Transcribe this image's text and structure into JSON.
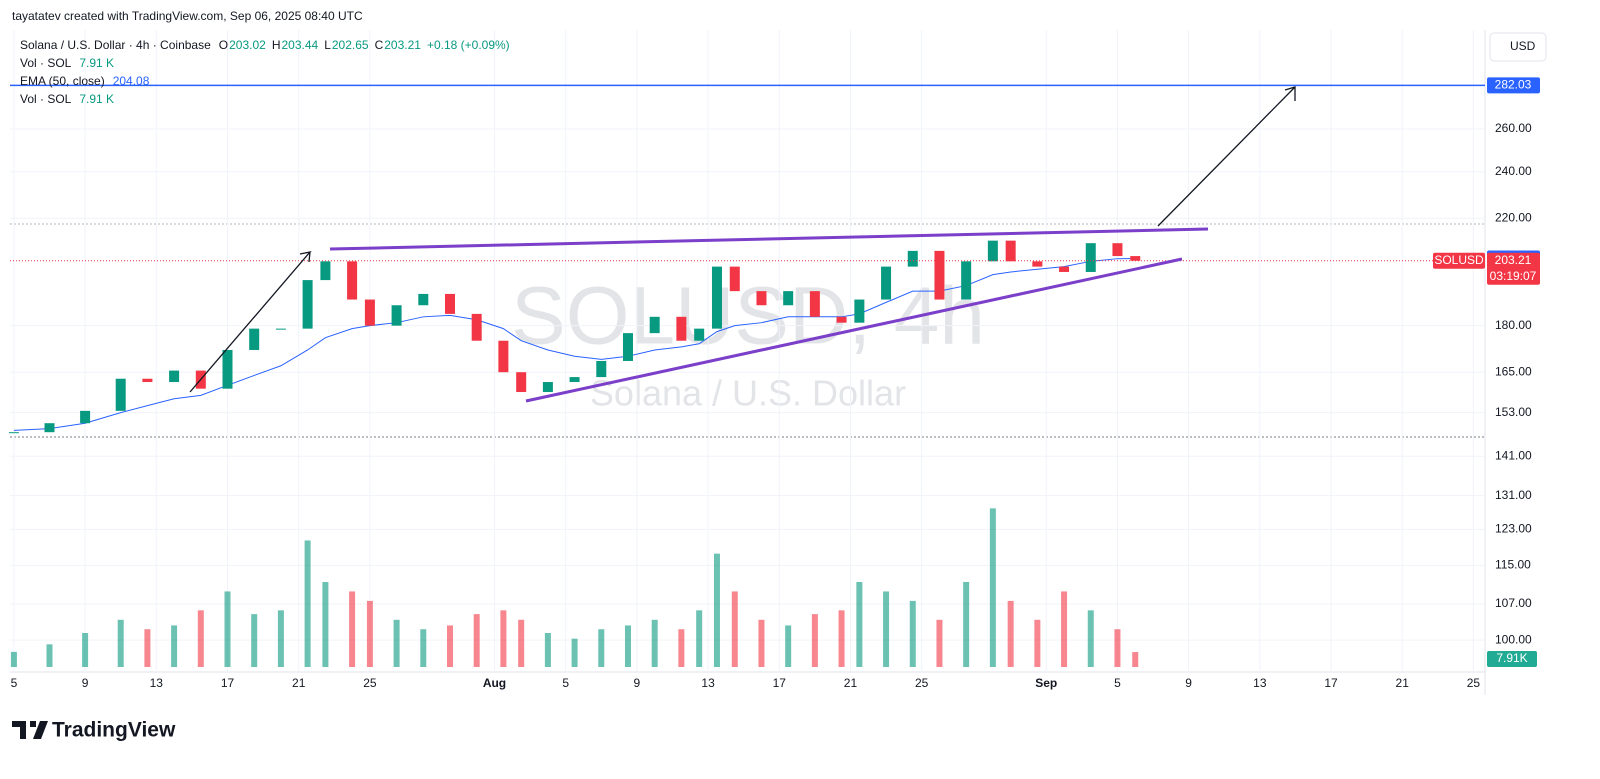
{
  "header": "tayatatev created with TradingView.com, Sep 06, 2025 08:40 UTC",
  "chart_data": {
    "type": "candlestick",
    "symbol": "Solana / U.S. Dollar · 4h · Coinbase",
    "ohlc": [
      {
        "label": "O",
        "value": 203.02
      },
      {
        "label": "H",
        "value": 203.44
      },
      {
        "label": "L",
        "value": 202.65
      },
      {
        "label": "C",
        "value": 203.21
      }
    ],
    "change": "+0.18 (+0.09%)",
    "indicators": [
      {
        "name": "Vol · SOL",
        "value": "7.91 K"
      },
      {
        "name": "EMA (50, close)",
        "value": 204.08
      },
      {
        "name": "Vol · SOL",
        "value": "7.91 K"
      }
    ],
    "currency": "USD",
    "x": [
      0,
      2,
      4,
      6,
      7.5,
      9,
      10.5,
      12,
      13.5,
      15,
      16.5,
      17.5,
      19,
      20,
      21.5,
      23,
      24.5,
      26,
      27.5,
      28.5,
      30,
      31.5,
      33,
      34.5,
      36,
      37.5,
      38.5,
      39.5,
      40.5,
      42,
      43.5,
      45,
      46.5,
      47.5,
      49,
      50.5,
      52,
      53.5,
      55,
      56,
      57.5,
      59,
      60.5,
      62,
      63
    ],
    "xlim": [
      -0.22,
      82.65
    ],
    "xticks": [
      {
        "value": 0,
        "label": "5"
      },
      {
        "value": 4,
        "label": "9"
      },
      {
        "value": 8,
        "label": "13"
      },
      {
        "value": 12,
        "label": "17"
      },
      {
        "value": 16,
        "label": "21"
      },
      {
        "value": 20,
        "label": "25"
      },
      {
        "value": 27,
        "label": "Aug"
      },
      {
        "value": 31,
        "label": "5"
      },
      {
        "value": 35,
        "label": "9"
      },
      {
        "value": 39,
        "label": "13"
      },
      {
        "value": 43,
        "label": "17"
      },
      {
        "value": 47,
        "label": "21"
      },
      {
        "value": 51,
        "label": "25"
      },
      {
        "value": 58,
        "label": "Sep"
      },
      {
        "value": 62,
        "label": "5"
      },
      {
        "value": 66,
        "label": "9"
      },
      {
        "value": 70,
        "label": "13"
      },
      {
        "value": 74,
        "label": "17"
      },
      {
        "value": 78,
        "label": "21"
      },
      {
        "value": 82,
        "label": "25"
      }
    ],
    "ylim": [
      91.1,
      312.8
    ],
    "log_scale": true,
    "yticks": [
      {
        "value": 100,
        "label": "100.00"
      },
      {
        "value": 107,
        "label": "107.00"
      },
      {
        "value": 115,
        "label": "115.00"
      },
      {
        "value": 123,
        "label": "123.00"
      },
      {
        "value": 131,
        "label": "131.00"
      },
      {
        "value": 141,
        "label": "141.00"
      },
      {
        "value": 153,
        "label": "153.00"
      },
      {
        "value": 165,
        "label": "165.00"
      },
      {
        "value": 180,
        "label": "180.00"
      },
      {
        "value": 220,
        "label": "220.00"
      },
      {
        "value": 240,
        "label": "240.00"
      },
      {
        "value": 260,
        "label": "260.00"
      }
    ],
    "series": [
      {
        "name": "SOLUSD",
        "up_color": "#089981",
        "down_color": "#f23645",
        "values": [
          147.5,
          150,
          153.5,
          163,
          162,
          165.5,
          160,
          172,
          179,
          179,
          196,
          203,
          189,
          180,
          187,
          191,
          184,
          175,
          165,
          159,
          162,
          163.5,
          168.5,
          177.5,
          183,
          175,
          179,
          201,
          192,
          187,
          192,
          183,
          181,
          189,
          201,
          207,
          189,
          203,
          211,
          203,
          201,
          199,
          210,
          205,
          203.21
        ]
      },
      {
        "name": "EMA (50, close)",
        "color": "#2962ff",
        "values": [
          148,
          148.5,
          150,
          153,
          155,
          157,
          158,
          161,
          164,
          167,
          172,
          176,
          179,
          180,
          181,
          183,
          183.5,
          182,
          179,
          175,
          172,
          170,
          169,
          170,
          172,
          173,
          174,
          178,
          180,
          181,
          183,
          183,
          183,
          184,
          188,
          192,
          192,
          194,
          198,
          199,
          200,
          201,
          203,
          204,
          204.08
        ]
      }
    ],
    "volume": {
      "values": [
        8,
        12,
        18,
        25,
        20,
        22,
        30,
        40,
        28,
        30,
        67,
        45,
        40,
        35,
        25,
        20,
        22,
        28,
        30,
        25,
        18,
        15,
        20,
        22,
        25,
        20,
        30,
        60,
        40,
        25,
        22,
        28,
        30,
        45,
        40,
        35,
        25,
        45,
        84,
        35,
        25,
        40,
        30,
        20,
        7.91
      ],
      "vlim": [
        0,
        90
      ],
      "tag": "7.91K"
    },
    "target": 282.03,
    "countdown": "03:19:07",
    "watermark": {
      "title": "SOLUSD, 4h",
      "subtitle": "Solana / U.S. Dollar"
    }
  },
  "logo": "TradingView"
}
